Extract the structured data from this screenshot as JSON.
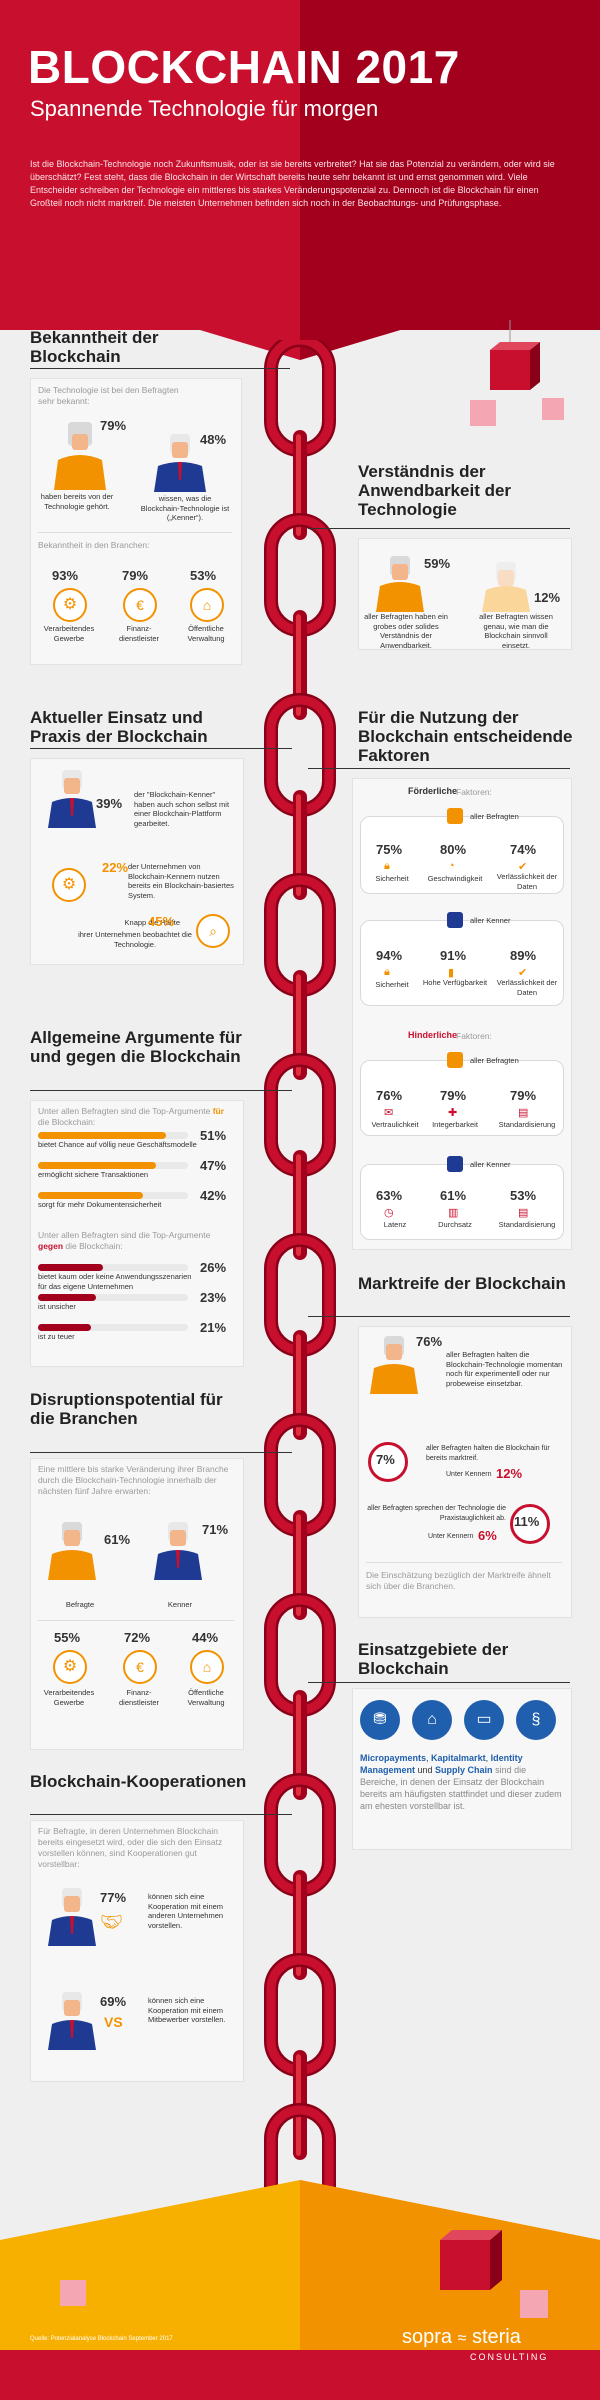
{
  "header": {
    "title": "BLOCKCHAIN 2017",
    "subtitle": "Spannende Technologie für morgen",
    "intro": "Ist die Blockchain-Technologie noch Zukunftsmusik, oder ist sie bereits verbreitet? Hat sie das Potenzial zu verändern, oder wird sie überschätzt? Fest steht, dass die Blockchain in der Wirtschaft bereits heute sehr bekannt ist und ernst genommen wird. Viele Entscheider schreiben der Technologie ein mittleres bis starkes Veränderungspotenzial zu. Dennoch ist die Blockchain für einen Großteil noch nicht marktreif. Die meisten Unternehmen befinden sich noch in der Beobachtungs- und Prüfungsphase."
  },
  "bekanntheit": {
    "title": "Bekanntheit der Blockchain",
    "lead": "Die Technologie ist bei den Befragten sehr bekannt:",
    "p1": {
      "value": "79%",
      "text": "haben bereits von der Technologie gehört."
    },
    "p2": {
      "value": "48%",
      "text": "wissen, was die Blockchain-Technologie ist („Kenner“)."
    },
    "branchen_lead": "Bekanntheit in den Branchen:",
    "branchen": [
      {
        "value": "93%",
        "label": "Verarbeitendes Gewerbe",
        "icon": "gear-icon"
      },
      {
        "value": "79%",
        "label": "Finanz-dienstleister",
        "icon": "coins-icon"
      },
      {
        "value": "53%",
        "label": "Öffentliche Verwaltung",
        "icon": "building-icon"
      }
    ]
  },
  "verstaendnis": {
    "title": "Verständnis der Anwendbarkeit der Technologie",
    "p1": {
      "value": "59%",
      "text": "aller Befragten haben ein grobes oder solides Verständnis der Anwendbarkeit."
    },
    "p2": {
      "value": "12%",
      "text": "aller Befragten wissen genau, wie man die Blockchain sinnvoll einsetzt."
    }
  },
  "einsatz": {
    "title": "Aktueller Einsatz und Praxis der Blockchain",
    "p1": {
      "value": "39%",
      "text": "der \"Blockchain-Kenner\" haben auch schon selbst mit einer Blockchain-Plattform gearbeitet."
    },
    "p2": {
      "value": "22%",
      "text": "der Unternehmen von Blockchain-Kennern nutzen bereits ein Blockchain-basiertes System."
    },
    "p3": {
      "prefix": "Knapp die Hälfte",
      "value": "45%",
      "text": "ihrer Unternehmen beobachtet die Technologie."
    }
  },
  "faktoren": {
    "title": "Für die Nutzung der Blockchain entscheidende Faktoren",
    "foerd_label": "Förderliche",
    "foerd_suffix": "Faktoren:",
    "hind_label": "Hinderliche",
    "hind_suffix": "Faktoren:",
    "groups": [
      {
        "who": "aller Befragten",
        "items": [
          {
            "value": "75%",
            "label": "Sicherheit"
          },
          {
            "value": "80%",
            "label": "Geschwindigkeit"
          },
          {
            "value": "74%",
            "label": "Verlässlichkeit der Daten"
          }
        ]
      },
      {
        "who": "aller Kenner",
        "items": [
          {
            "value": "94%",
            "label": "Sicherheit"
          },
          {
            "value": "91%",
            "label": "Hohe Verfügbarkeit"
          },
          {
            "value": "89%",
            "label": "Verlässlichkeit der Daten"
          }
        ]
      },
      {
        "who": "aller Befragten",
        "items": [
          {
            "value": "76%",
            "label": "Vertraulichkeit"
          },
          {
            "value": "79%",
            "label": "Integerbarkeit"
          },
          {
            "value": "79%",
            "label": "Standardisierung"
          }
        ]
      },
      {
        "who": "aller Kenner",
        "items": [
          {
            "value": "63%",
            "label": "Latenz"
          },
          {
            "value": "61%",
            "label": "Durchsatz"
          },
          {
            "value": "53%",
            "label": "Standardisierung"
          }
        ]
      }
    ]
  },
  "argumente": {
    "title": "Allgemeine Argumente für und gegen die Blockchain",
    "lead_for_pre": "Unter allen Befragten sind die Top-Argumente",
    "lead_for_word": "für",
    "lead_for_post": "die Blockchain:",
    "for": [
      {
        "value": "51%",
        "label": "bietet Chance auf völlig neue Geschäftsmodelle",
        "frac": 0.51
      },
      {
        "value": "47%",
        "label": "ermöglicht sichere Transaktionen",
        "frac": 0.47
      },
      {
        "value": "42%",
        "label": "sorgt für mehr Dokumentensicherheit",
        "frac": 0.42
      }
    ],
    "lead_against_pre": "Unter allen Befragten sind die Top-Argumente",
    "lead_against_word": "gegen",
    "lead_against_post": "die Blockchain:",
    "against": [
      {
        "value": "26%",
        "label": "bietet kaum oder keine Anwendungsszenarien für das eigene Unternehmen",
        "frac": 0.26
      },
      {
        "value": "23%",
        "label": "ist unsicher",
        "frac": 0.23
      },
      {
        "value": "21%",
        "label": "ist zu teuer",
        "frac": 0.21
      }
    ]
  },
  "marktreife": {
    "title": "Marktreife der Blockchain",
    "p1": {
      "value": "76%",
      "text": "aller Befragten halten die Blockchain-Technologie momentan noch für experimentell oder nur probeweise einsetzbar."
    },
    "p2": {
      "value": "7%",
      "text": "aller Befragten halten die Blockchain für bereits marktreif.",
      "sub": "Unter Kennern",
      "subval": "12%"
    },
    "p3": {
      "value": "11%",
      "text": "aller Befragten sprechen der Technologie die Praxistauglichkeit ab.",
      "sub": "Unter Kennern",
      "subval": "6%"
    },
    "note": "Die Einschätzung bezüglich der Marktreife ähnelt sich über die Branchen."
  },
  "disruption": {
    "title": "Disruptionspotential für die Branchen",
    "lead": "Eine mittlere bis starke Veränderung ihrer Branche durch die Blockchain-Technologie innerhalb der nächsten fünf Jahre erwarten:",
    "p1": {
      "value": "61%",
      "label": "Befragte"
    },
    "p2": {
      "value": "71%",
      "label": "Kenner"
    },
    "branchen": [
      {
        "value": "55%",
        "label": "Verarbeitendes Gewerbe",
        "icon": "gear-icon"
      },
      {
        "value": "72%",
        "label": "Finanz-dienstleister",
        "icon": "coins-icon"
      },
      {
        "value": "44%",
        "label": "Öffentliche Verwaltung",
        "icon": "building-icon"
      }
    ]
  },
  "einsatzgebiete": {
    "title": "Einsatzgebiete der Blockchain",
    "icons": [
      "payments-icon",
      "bank-icon",
      "id-card-icon",
      "paragraph-icon"
    ],
    "hl1": "Micropayments",
    "sep1": ", ",
    "hl2": "Kapitalmarkt",
    "sep2": ", ",
    "hl3": "Identity Management",
    "sep3": " und ",
    "hl4": "Supply Chain",
    "rest": " sind die Bereiche, in denen der Einsatz der Blockchain bereits am häufigsten stattfindet und dieser zudem am ehesten vorstellbar ist."
  },
  "kooperationen": {
    "title": "Blockchain-Kooperationen",
    "lead": "Für Befragte, in deren Unternehmen Blockchain bereits eingesetzt wird, oder die sich den Einsatz vorstellen können, sind Kooperationen gut vorstellbar:",
    "p1": {
      "value": "77%",
      "text": "können sich eine Kooperation mit einem anderen Unternehmen vorstellen."
    },
    "p2": {
      "value": "69%",
      "vs": "VS",
      "text": "können sich eine Kooperation mit einem Mitbewerber vorstellen."
    }
  },
  "footer": {
    "source": "Quelle: Potenzialanalyse Blockchain September 2017",
    "brand1": "sopra",
    "brand2": "steria",
    "brand3": "CONSULTING"
  },
  "colors": {
    "red": "#c8102e",
    "dark_red": "#a3001e",
    "orange": "#f39200",
    "yellow": "#f7b000",
    "blue": "#1f3a93"
  }
}
